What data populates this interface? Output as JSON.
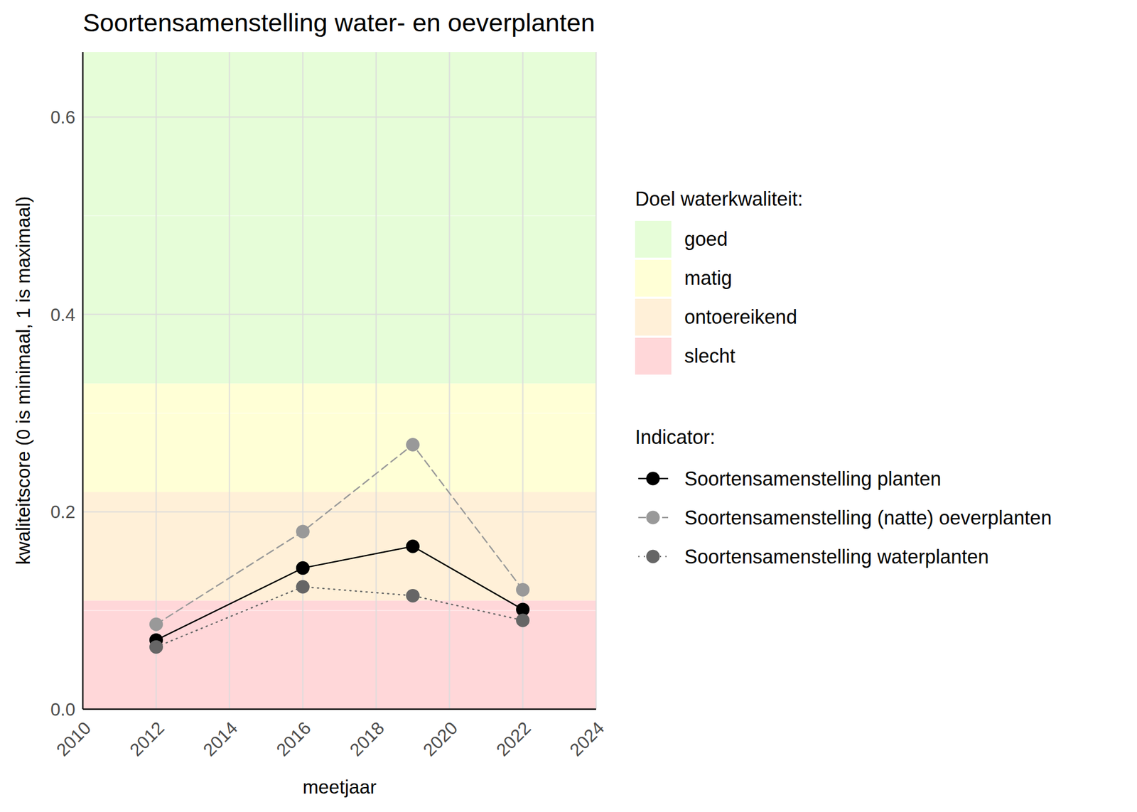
{
  "chart_data": {
    "type": "line",
    "title": "Soortensamenstelling water- en oeverplanten",
    "x_label": "meetjaar",
    "y_label": "kwaliteitscore (0 is minimaal, 1 is maximaal)",
    "x": [
      2012,
      2016,
      2019,
      2022
    ],
    "xlim": [
      2010,
      2024
    ],
    "xticks": [
      2010,
      2012,
      2014,
      2016,
      2018,
      2020,
      2022,
      2024
    ],
    "ylim": [
      0,
      0.666
    ],
    "yticks": [
      0.0,
      0.2,
      0.4,
      0.6
    ],
    "grid": true,
    "legend": "right",
    "band_title": "Doel waterkwaliteit:",
    "legend_title": "Indicator:",
    "bands": [
      {
        "name": "goed",
        "from": 0.33,
        "to": 1,
        "color": "#e6fdd8"
      },
      {
        "name": "matig",
        "from": 0.22,
        "to": 0.33,
        "color": "#ffffd6"
      },
      {
        "name": "ontoereikend",
        "from": 0.11,
        "to": 0.22,
        "color": "#fff0d8"
      },
      {
        "name": "slecht",
        "from": 0,
        "to": 0.11,
        "color": "#ffd7d9"
      }
    ],
    "series": [
      {
        "name": "Soortensamenstelling planten",
        "color": "#000000",
        "line_style": "solid",
        "marker": "circle",
        "values": [
          0.07,
          0.143,
          0.165,
          0.101
        ]
      },
      {
        "name": "Soortensamenstelling (natte) oeverplanten",
        "color": "#999999",
        "line_style": "dashed",
        "marker": "circle",
        "values": [
          0.086,
          0.18,
          0.268,
          0.121
        ]
      },
      {
        "name": "Soortensamenstelling waterplanten",
        "color": "#666666",
        "line_style": "dotted",
        "marker": "circle",
        "values": [
          0.063,
          0.124,
          0.115,
          0.09
        ]
      }
    ]
  }
}
